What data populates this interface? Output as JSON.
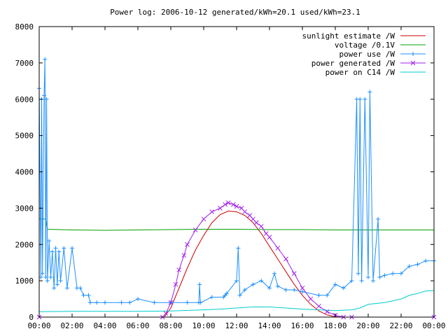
{
  "chart_data": {
    "type": "line",
    "title": "Power log: 2006-10-12 generated/kWh=20.1 used/kWh=23.1",
    "xlabel": "",
    "ylabel": "",
    "xlim": [
      0,
      24
    ],
    "ylim": [
      0,
      8000
    ],
    "x_tick_labels": [
      "00:00",
      "02:00",
      "04:00",
      "06:00",
      "08:00",
      "10:00",
      "12:00",
      "14:00",
      "16:00",
      "18:00",
      "20:00",
      "22:00",
      "00:00"
    ],
    "y_ticks": [
      0,
      1000,
      2000,
      3000,
      4000,
      5000,
      6000,
      7000,
      8000
    ],
    "grid": false,
    "legend_position": "top-right",
    "series": [
      {
        "name": "sunlight estimate /W",
        "color": "#cc0000",
        "marker": "none",
        "x": [
          7.6,
          8.0,
          8.5,
          9.0,
          9.5,
          10.0,
          10.5,
          11.0,
          11.5,
          12.0,
          12.5,
          13.0,
          13.5,
          14.0,
          14.5,
          15.0,
          15.5,
          16.0,
          16.5,
          17.0,
          17.5,
          18.0,
          18.3
        ],
        "values": [
          0,
          250,
          800,
          1350,
          1850,
          2250,
          2600,
          2820,
          2920,
          2900,
          2800,
          2600,
          2300,
          1950,
          1600,
          1250,
          900,
          600,
          350,
          170,
          60,
          10,
          0
        ]
      },
      {
        "name": "voltage /0.1V",
        "color": "#00a000",
        "marker": "none",
        "x": [
          0,
          0.4,
          0.5,
          2,
          4,
          6,
          8,
          10,
          12,
          14,
          16,
          18,
          20,
          22,
          24
        ],
        "values": [
          2700,
          2700,
          2420,
          2400,
          2390,
          2400,
          2410,
          2420,
          2420,
          2410,
          2410,
          2400,
          2400,
          2400,
          2400
        ]
      },
      {
        "name": "power use /W",
        "color": "#1e90ff",
        "marker": "plus",
        "x": [
          0,
          0.1,
          0.15,
          0.2,
          0.3,
          0.35,
          0.4,
          0.45,
          0.5,
          0.6,
          0.7,
          0.8,
          0.9,
          1.0,
          1.1,
          1.2,
          1.3,
          1.5,
          1.7,
          2.0,
          2.3,
          2.5,
          2.7,
          3.0,
          3.1,
          3.5,
          4.0,
          5.0,
          5.5,
          6.0,
          7.0,
          8.0,
          9.0,
          9.7,
          9.75,
          9.8,
          10.5,
          11.2,
          11.3,
          11.4,
          12.0,
          12.1,
          12.2,
          12.5,
          13.0,
          13.5,
          14.0,
          14.3,
          14.5,
          15.0,
          15.5,
          16.0,
          17.0,
          17.5,
          18.0,
          18.5,
          19.0,
          19.3,
          19.4,
          19.5,
          19.6,
          19.8,
          20.0,
          20.1,
          20.3,
          20.6,
          20.7,
          21.0,
          21.5,
          22.0,
          22.5,
          23.0,
          23.5,
          24.0
        ],
        "values": [
          6300,
          1100,
          6000,
          1200,
          6100,
          7100,
          1100,
          6000,
          1000,
          2100,
          1100,
          1800,
          800,
          1900,
          900,
          1800,
          1000,
          1900,
          800,
          1900,
          800,
          800,
          600,
          600,
          400,
          400,
          400,
          400,
          400,
          500,
          400,
          400,
          400,
          400,
          900,
          400,
          550,
          550,
          600,
          650,
          1000,
          1900,
          600,
          750,
          900,
          1000,
          800,
          1200,
          850,
          750,
          750,
          700,
          600,
          600,
          900,
          800,
          1000,
          6000,
          1200,
          6000,
          1000,
          6000,
          1100,
          6200,
          1000,
          2700,
          1100,
          1150,
          1200,
          1200,
          1400,
          1450,
          1550,
          1550
        ]
      },
      {
        "name": "power generated /W",
        "color": "#a020f0",
        "marker": "cross",
        "x": [
          0,
          7.5,
          7.7,
          8.0,
          8.3,
          8.5,
          8.8,
          9.0,
          9.5,
          10.0,
          10.5,
          11.0,
          11.3,
          11.5,
          11.8,
          12.0,
          12.3,
          12.5,
          12.8,
          13.0,
          13.2,
          13.5,
          13.8,
          14.0,
          14.5,
          15.0,
          15.5,
          16.0,
          16.5,
          17.0,
          17.5,
          18.0,
          18.5,
          19.0,
          24.0
        ],
        "values": [
          0,
          0,
          100,
          400,
          900,
          1300,
          1700,
          2000,
          2400,
          2700,
          2900,
          3000,
          3100,
          3150,
          3100,
          3050,
          3000,
          2900,
          2800,
          2700,
          2600,
          2500,
          2300,
          2200,
          1900,
          1600,
          1200,
          800,
          500,
          300,
          150,
          50,
          0,
          0,
          0
        ]
      },
      {
        "name": "power on C14 /W",
        "color": "#00cccc",
        "marker": "none",
        "x": [
          0,
          2,
          4,
          6,
          8,
          10,
          11,
          12,
          13,
          14,
          15,
          16,
          17,
          18,
          19,
          19.5,
          20,
          21,
          21.5,
          22,
          22.5,
          23,
          23.5,
          24
        ],
        "values": [
          150,
          160,
          160,
          160,
          170,
          200,
          220,
          250,
          280,
          280,
          250,
          220,
          200,
          180,
          200,
          250,
          350,
          400,
          450,
          500,
          600,
          650,
          720,
          730
        ]
      }
    ]
  }
}
